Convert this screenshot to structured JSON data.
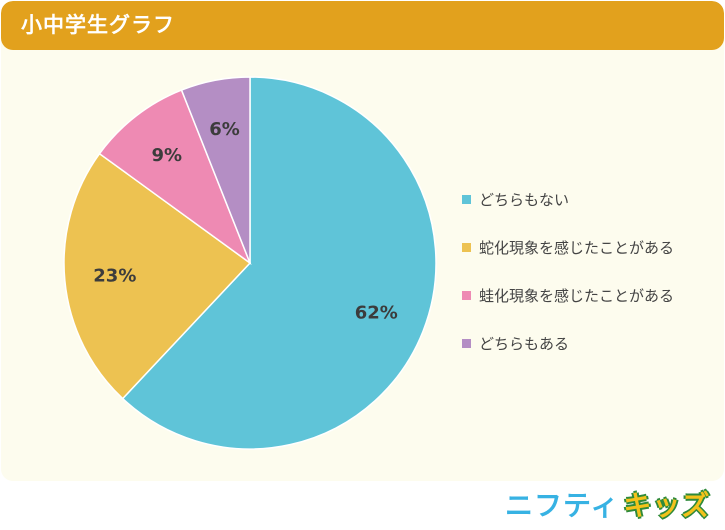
{
  "header": {
    "title": "小中学生グラフ"
  },
  "chart_data": {
    "type": "pie",
    "categories": [
      "どちらもない",
      "蛇化現象を感じたことがある",
      "蛙化現象を感じたことがある",
      "どちらもある"
    ],
    "values": [
      62,
      23,
      9,
      6
    ],
    "data_labels": [
      "62%",
      "23%",
      "9%",
      "6%"
    ],
    "colors": [
      "#5fc4d8",
      "#edc251",
      "#ee8ab3",
      "#b48ec4"
    ],
    "start_angle": "top (12 o'clock)",
    "direction": "clockwise",
    "legend_position": "right"
  },
  "logo": {
    "part1": "ニフティ",
    "part2": "キッズ"
  }
}
